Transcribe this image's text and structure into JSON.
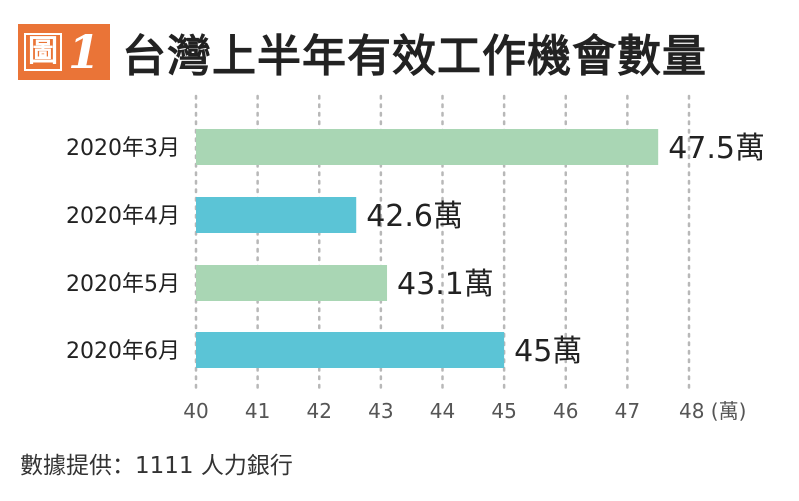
{
  "header": {
    "figure_prefix": "圖",
    "figure_number": "1",
    "title": "台灣上半年有效工作機會數量"
  },
  "source": "數據提供：1111 人力銀行",
  "colors": {
    "accent": "#ea7437",
    "green": "#a9d6b4",
    "blue": "#5bc4d6"
  },
  "chart_data": {
    "type": "bar",
    "orientation": "horizontal",
    "categories": [
      "2020年3月",
      "2020年4月",
      "2020年5月",
      "2020年6月"
    ],
    "values": [
      47.5,
      42.6,
      43.1,
      45
    ],
    "data_labels": [
      "47.5萬",
      "42.6萬",
      "43.1萬",
      "45萬"
    ],
    "bar_colors": [
      "#a9d6b4",
      "#5bc4d6",
      "#a9d6b4",
      "#5bc4d6"
    ],
    "x_ticks": [
      "40",
      "41",
      "42",
      "43",
      "44",
      "45",
      "46",
      "47",
      "48"
    ],
    "x_unit": "(萬)",
    "xlim": [
      40,
      48
    ],
    "grid": true,
    "title": "台灣上半年有效工作機會數量"
  }
}
